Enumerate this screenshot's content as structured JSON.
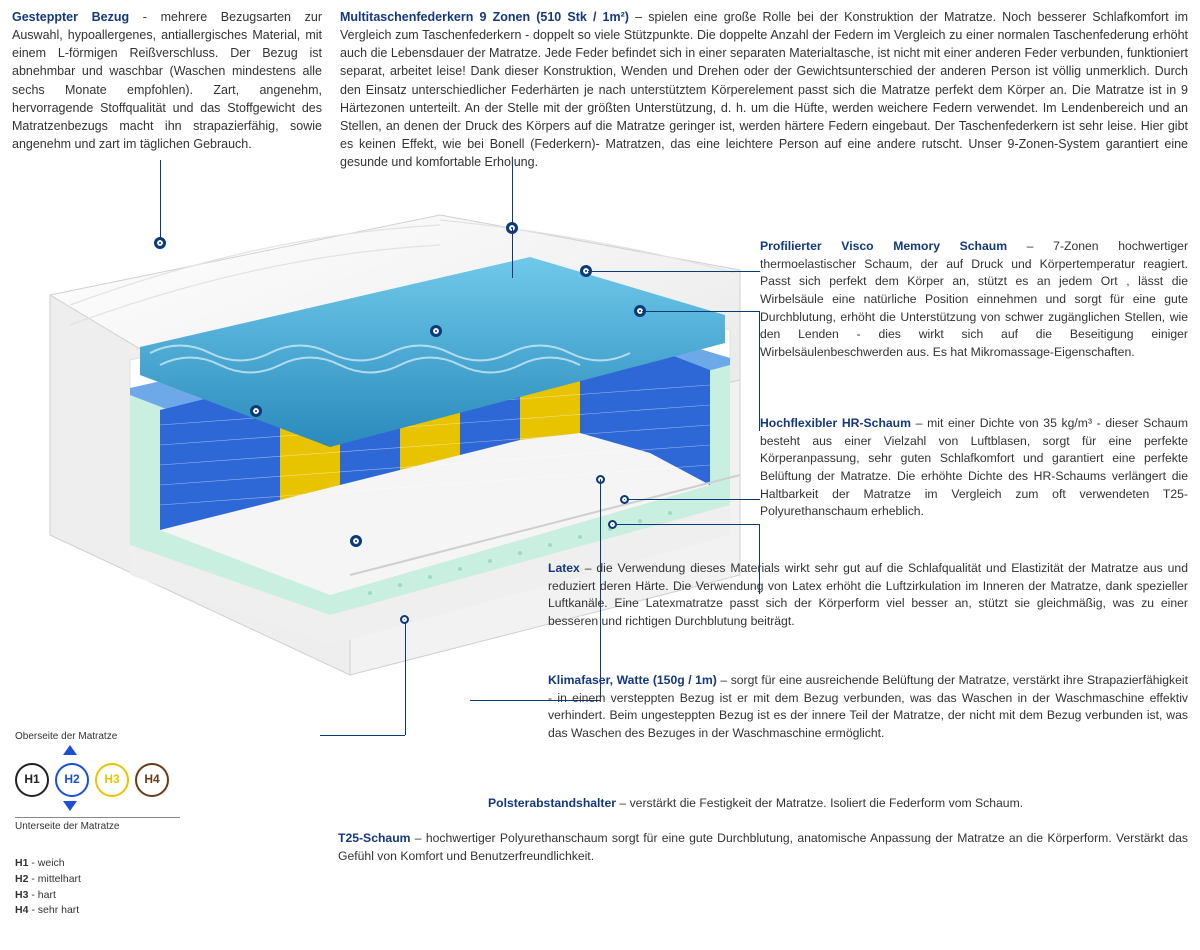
{
  "top": {
    "left": {
      "title": "Gesteppter Bezug",
      "sep": " - ",
      "text": "mehrere Bezugsarten zur Auswahl, hypoallergenes, antiallergisches Material, mit einem L-förmigen Reißverschluss. Der Bezug ist abnehmbar und waschbar (Waschen mindestens alle sechs Monate empfohlen). Zart, angenehm, hervorragende Stoffqualität und das Stoffgewicht des Matratzenbezugs macht ihn strapazierfähig, sowie angenehm und zart im täglichen Gebrauch."
    },
    "right": {
      "title": "Multitaschenfederkern 9 Zonen (510 Stk / 1m²)",
      "sep": " – ",
      "text": "spielen eine große Rolle bei der Konstruktion der Matratze. Noch besserer Schlafkomfort im Vergleich zum Taschenfederkern - doppelt so viele Stützpunkte. Die doppelte Anzahl der Federn im Vergleich zu einer normalen Taschenfederung erhöht auch die Lebensdauer der Matratze. Jede Feder befindet sich in einer separaten Materialtasche, ist nicht mit einer anderen Feder verbunden, funktioniert separat, arbeitet leise! Dank dieser Konstruktion, Wenden und Drehen oder der Gewichtsunterschied der anderen Person ist völlig unmerklich. Durch den Einsatz unterschiedlicher Federhärten je nach unterstütztem Körperelement passt sich die Matratze perfekt dem Körper an. Die Matratze ist in 9 Härtezonen unterteilt. An der Stelle mit der größten Unterstützung, d. h. um die Hüfte, werden weichere Federn verwendet. Im Lendenbereich und an Stellen, an denen der Druck des Körpers auf die Matratze geringer ist, werden härtere Federn eingebaut. Der Taschenfederkern ist sehr leise. Hier gibt es keinen Effekt, wie bei Bonell (Federkern)- Matratzen, das eine leichtere Person auf eine andere rutscht. Unser 9-Zonen-System garantiert eine gesunde und komfortable Erholung."
    }
  },
  "right_blocks": {
    "visco": {
      "title": "Profilierter Visco Memory Schaum",
      "sep": " – ",
      "text": "7-Zonen hochwertiger thermoelastischer Schaum, der auf Druck und Körpertemperatur reagiert. Passt sich perfekt dem Körper an, stützt es an jedem Ort , lässt die Wirbelsäule eine natürliche Position einnehmen und sorgt für eine gute Durchblutung, erhöht die Unterstützung von schwer zugänglichen Stellen, wie den Lenden - dies wirkt sich auf die Beseitigung einiger Wirbelsäulenbeschwerden aus. Es hat Mikromassage-Eigenschaften."
    },
    "hr": {
      "title": "Hochflexibler HR-Schaum",
      "sep": " – ",
      "text": "mit einer Dichte von 35 kg/m³ - dieser Schaum besteht aus einer Vielzahl von Luftblasen, sorgt für eine perfekte Körperanpassung, sehr guten Schlafkomfort und garantiert eine perfekte Belüftung der Matratze. Die erhöhte Dichte des HR-Schaums verlängert die Haltbarkeit der Matratze im Vergleich zum oft verwendeten T25-Polyurethanschaum erheblich."
    },
    "latex": {
      "title": "Latex",
      "sep": " – ",
      "text": "die Verwendung dieses Materials wirkt sehr gut auf die Schlafqualität und Elastizität der Matratze aus und reduziert deren Härte. Die Verwendung von Latex erhöht die Luftzirkulation im Inneren der Matratze, dank spezieller Luftkanäle. Eine Latexmatratze passt sich der Körperform viel besser an, stützt sie gleichmäßig, was zu einer besseren und richtigen Durchblutung beiträgt."
    },
    "klima": {
      "title": "Klimafaser, Watte (150g / 1m)",
      "sep": " – ",
      "text": "sorgt für eine ausreichende Belüftung der Matratze, verstärkt ihre Strapazierfähigkeit - in einem versteppten Bezug ist er mit dem Bezug verbunden, was das Waschen in der Waschmaschine effektiv verhindert. Beim ungesteppten Bezug ist es der innere Teil der Matratze, der nicht mit dem Bezug verbunden ist, was das Waschen des Bezuges in der Waschmaschine ermöglicht."
    },
    "polster": {
      "title": "Polsterabstandshalter",
      "sep": " – ",
      "text": "verstärkt die Festigkeit der Matratze. Isoliert die Federform vom Schaum."
    },
    "t25": {
      "title": "T25-Schaum",
      "sep": " – ",
      "text": "hochwertiger Polyurethanschaum sorgt für eine gute Durchblutung, anatomische Anpassung der Matratze an die Körperform. Verstärkt das Gefühl von Komfort und Benutzerfreundlichkeit."
    }
  },
  "legend": {
    "top_label": "Oberseite der Matratze",
    "bottom_label": "Unterseite der Matratze",
    "items": [
      {
        "code": "H1",
        "name": "weich",
        "color": "#222222"
      },
      {
        "code": "H2",
        "name": "mittelhart",
        "color": "#1b4fd6"
      },
      {
        "code": "H3",
        "name": "hart",
        "color": "#e8c400"
      },
      {
        "code": "H4",
        "name": "sehr hart",
        "color": "#6b3a18"
      }
    ]
  },
  "colors": {
    "title": "#14387f",
    "dot": "#0b3a7a",
    "cover": "#f4f4f4",
    "cover_shadow": "#d8d8d8",
    "visco_top": "#9fd3e8",
    "visco_wave": "#3aa6cf",
    "hr_side": "#ffffff",
    "spring_blue": "#2e68d6",
    "spring_yellow": "#e8c400",
    "latex": "#c9efe0",
    "t25": "#e9e9e9",
    "separator": "#6da9e8"
  }
}
